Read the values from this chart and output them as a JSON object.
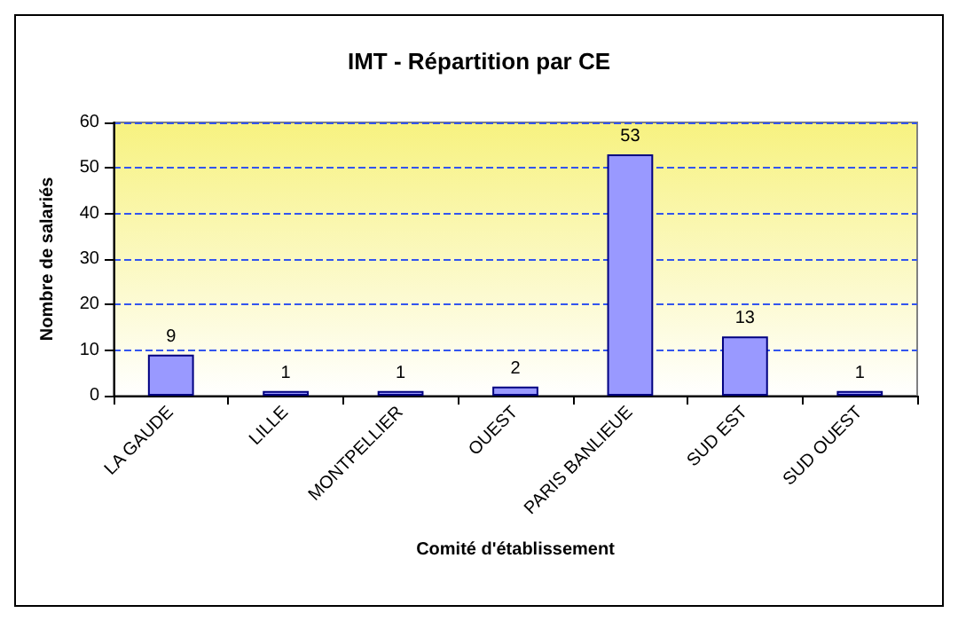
{
  "chart_data": {
    "type": "bar",
    "title": "IMT - Répartition par CE",
    "xlabel": "Comité d'établissement",
    "ylabel": "Nombre de salariés",
    "categories": [
      "LA GAUDE",
      "LILLE",
      "MONTPELLIER",
      "OUEST",
      "PARIS BANLIEUE",
      "SUD EST",
      "SUD OUEST"
    ],
    "values": [
      9,
      1,
      1,
      2,
      53,
      13,
      1
    ],
    "color": "#9999ff",
    "ylim": [
      0,
      60
    ],
    "yticks": [
      0,
      10,
      20,
      30,
      40,
      50,
      60
    ],
    "grid": "y",
    "data_labels": true
  }
}
